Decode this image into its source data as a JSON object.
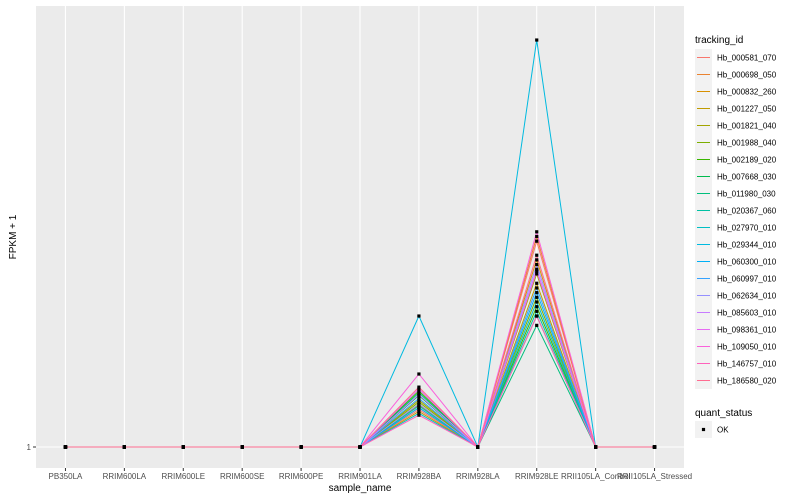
{
  "chart_data": {
    "type": "line",
    "xlabel": "sample_name",
    "ylabel": "FPKM + 1",
    "categories": [
      "PB350LA",
      "RRIM600LA",
      "RRIM600LE",
      "RRIM600SE",
      "RRIM600PE",
      "RRIM901LA",
      "RRIM928BA",
      "RRIM928LA",
      "RRIM928LE",
      "RRII105LA_Control",
      "RRII105LA_Stressed"
    ],
    "y_tick_labels": [
      "1"
    ],
    "ylim": [
      0,
      4.5
    ],
    "grid": true,
    "legend_position": "right",
    "legend_title": "tracking_id",
    "series": [
      {
        "name": "Hb_000581_070",
        "color": "#F8766D",
        "values": [
          0,
          0,
          0,
          0,
          0,
          0,
          0.4,
          0,
          2.2,
          0,
          0
        ]
      },
      {
        "name": "Hb_000698_050",
        "color": "#EA8331",
        "values": [
          0,
          0,
          0,
          0,
          0,
          0,
          0.42,
          0,
          2.25,
          0,
          0
        ]
      },
      {
        "name": "Hb_000832_260",
        "color": "#D89000",
        "values": [
          0,
          0,
          0,
          0,
          0,
          0,
          0.45,
          0,
          2.0,
          0,
          0
        ]
      },
      {
        "name": "Hb_001227_050",
        "color": "#C09B00",
        "values": [
          0,
          0,
          0,
          0,
          0,
          0,
          0.38,
          0,
          1.75,
          0,
          0
        ]
      },
      {
        "name": "Hb_001821_040",
        "color": "#A3A500",
        "values": [
          0,
          0,
          0,
          0,
          0,
          0,
          0.5,
          0,
          1.85,
          0,
          0
        ]
      },
      {
        "name": "Hb_001988_040",
        "color": "#7CAE00",
        "values": [
          0,
          0,
          0,
          0,
          0,
          0,
          0.48,
          0,
          1.6,
          0,
          0
        ]
      },
      {
        "name": "Hb_002189_020",
        "color": "#39B600",
        "values": [
          0,
          0,
          0,
          0,
          0,
          0,
          0.6,
          0,
          1.5,
          0,
          0
        ]
      },
      {
        "name": "Hb_007668_030",
        "color": "#00BB4E",
        "values": [
          0,
          0,
          0,
          0,
          0,
          0,
          0.55,
          0,
          1.4,
          0,
          0
        ]
      },
      {
        "name": "Hb_011980_030",
        "color": "#00BF7D",
        "values": [
          0,
          0,
          0,
          0,
          0,
          0,
          0.58,
          0,
          1.3,
          0,
          0
        ]
      },
      {
        "name": "Hb_020367_060",
        "color": "#00C1A3",
        "values": [
          0,
          0,
          0,
          0,
          0,
          0,
          0.44,
          0,
          1.45,
          0,
          0
        ]
      },
      {
        "name": "Hb_027970_010",
        "color": "#00BFC4",
        "values": [
          0,
          0,
          0,
          0,
          0,
          0,
          0.36,
          0,
          1.55,
          0,
          0
        ]
      },
      {
        "name": "Hb_029344_010",
        "color": "#00BAE0",
        "values": [
          0,
          0,
          0,
          0,
          0,
          0,
          1.4,
          0,
          4.35,
          0,
          0
        ]
      },
      {
        "name": "Hb_060300_010",
        "color": "#00B0F6",
        "values": [
          0,
          0,
          0,
          0,
          0,
          0,
          0.42,
          0,
          1.65,
          0,
          0
        ]
      },
      {
        "name": "Hb_060997_010",
        "color": "#35A2FF",
        "values": [
          0,
          0,
          0,
          0,
          0,
          0,
          0.52,
          0,
          1.7,
          0,
          0
        ]
      },
      {
        "name": "Hb_062634_010",
        "color": "#9590FF",
        "values": [
          0,
          0,
          0,
          0,
          0,
          0,
          0.46,
          0,
          1.95,
          0,
          0
        ]
      },
      {
        "name": "Hb_085603_010",
        "color": "#C77CFF",
        "values": [
          0,
          0,
          0,
          0,
          0,
          0,
          0.56,
          0,
          1.9,
          0,
          0
        ]
      },
      {
        "name": "Hb_098361_010",
        "color": "#E76BF3",
        "values": [
          0,
          0,
          0,
          0,
          0,
          0,
          0.62,
          0,
          1.88,
          0,
          0
        ]
      },
      {
        "name": "Hb_109050_010",
        "color": "#FA62DB",
        "values": [
          0,
          0,
          0,
          0,
          0,
          0,
          0.78,
          0,
          2.3,
          0,
          0
        ]
      },
      {
        "name": "Hb_146757_010",
        "color": "#FF62BC",
        "values": [
          0,
          0,
          0,
          0,
          0,
          0,
          0.34,
          0,
          1.4,
          0,
          0
        ]
      },
      {
        "name": "Hb_186580_020",
        "color": "#FF6C91",
        "values": [
          0,
          0,
          0,
          0,
          0,
          0,
          0.64,
          0,
          2.05,
          0,
          0
        ]
      }
    ],
    "shape_legend": {
      "title": "quant_status",
      "items": [
        {
          "label": "OK"
        }
      ]
    }
  }
}
